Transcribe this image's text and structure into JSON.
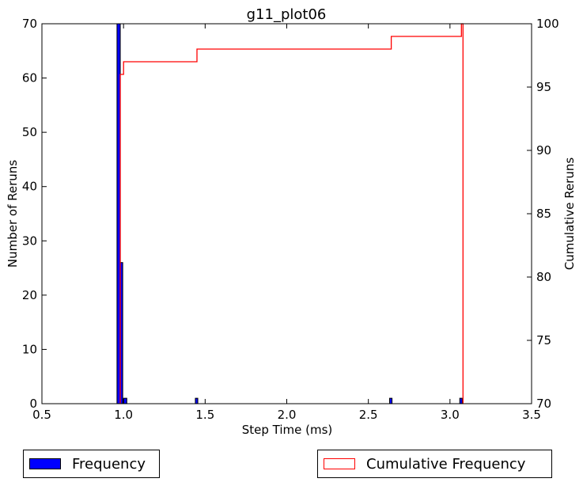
{
  "chart_data": {
    "type": "bar",
    "title": "g11_plot06",
    "xlabel": "Step Time (ms)",
    "ylabel": "Number of Reruns",
    "ylabel_right": "Cumulative Reruns",
    "xlim": [
      0.5,
      3.5
    ],
    "ylim": [
      0,
      70
    ],
    "ylim_right": [
      70,
      100
    ],
    "x_ticks": [
      "0.5",
      "1.0",
      "1.5",
      "2.0",
      "2.5",
      "3.0",
      "3.5"
    ],
    "y_ticks": [
      "0",
      "10",
      "20",
      "30",
      "40",
      "50",
      "60",
      "70"
    ],
    "y_ticks_right": [
      "70",
      "75",
      "80",
      "85",
      "90",
      "95",
      "100"
    ],
    "grid": false,
    "series": [
      {
        "name": "Frequency",
        "color": "#0000ff",
        "bins": [
          {
            "x0": 0.96,
            "x1": 0.98,
            "value": 70
          },
          {
            "x0": 0.98,
            "x1": 0.995,
            "value": 26
          },
          {
            "x0": 1.0,
            "x1": 1.02,
            "value": 1
          },
          {
            "x0": 1.44,
            "x1": 1.455,
            "value": 1
          },
          {
            "x0": 2.63,
            "x1": 2.645,
            "value": 1
          },
          {
            "x0": 3.06,
            "x1": 3.075,
            "value": 1
          }
        ]
      },
      {
        "name": "Cumulative Frequency",
        "color": "#ff0000",
        "axis": "right",
        "steps": [
          {
            "x": 0.98,
            "y": 70
          },
          {
            "x": 0.98,
            "y": 96
          },
          {
            "x": 1.0,
            "y": 96
          },
          {
            "x": 1.0,
            "y": 97
          },
          {
            "x": 1.45,
            "y": 97
          },
          {
            "x": 1.45,
            "y": 98
          },
          {
            "x": 2.64,
            "y": 98
          },
          {
            "x": 2.64,
            "y": 99
          },
          {
            "x": 3.07,
            "y": 99
          },
          {
            "x": 3.07,
            "y": 100
          },
          {
            "x": 3.08,
            "y": 100
          },
          {
            "x": 3.08,
            "y": 70
          }
        ]
      }
    ],
    "legend": [
      {
        "label": "Frequency",
        "style": "filled",
        "color": "#0000ff",
        "placement": "bottom-left"
      },
      {
        "label": "Cumulative Frequency",
        "style": "outline",
        "color": "#ff0000",
        "placement": "bottom-right"
      }
    ]
  }
}
